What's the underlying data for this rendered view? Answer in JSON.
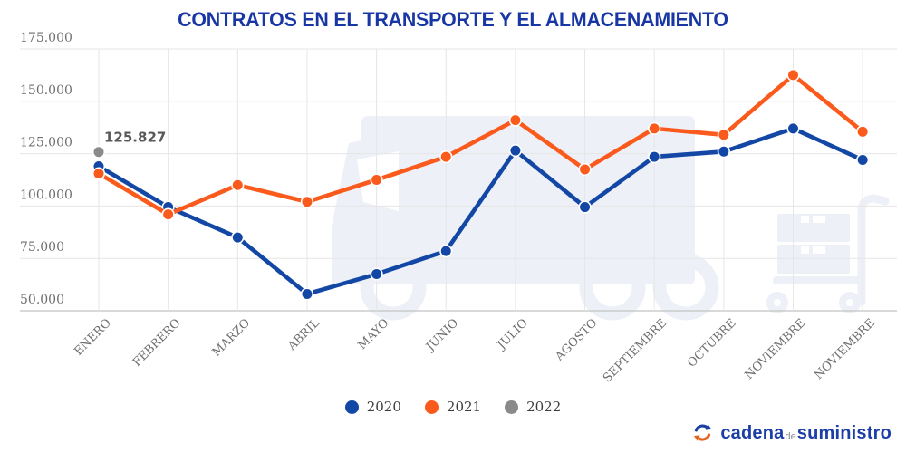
{
  "chart_data": {
    "type": "line",
    "title": "CONTRATOS EN EL TRANSPORTE Y EL ALMACENAMIENTO",
    "categories": [
      "ENERO",
      "FEBRERO",
      "MARZO",
      "ABRIL",
      "MAYO",
      "JUNIO",
      "JULIO",
      "AGOSTO",
      "SEPTIEMBRE",
      "OCTUBRE",
      "NOVIEMBRE",
      "NOVIEMBRE"
    ],
    "y_tick_labels": [
      "175.000",
      "150.000",
      "125.000",
      "100.000",
      "75.000",
      "50.000"
    ],
    "ylim": [
      50000,
      175000
    ],
    "grid": true,
    "legend_position": "bottom",
    "series": [
      {
        "name": "2020",
        "color": "#1247a5",
        "values": [
          119000,
          99500,
          85000,
          58000,
          67500,
          78500,
          126500,
          99500,
          123500,
          126000,
          137000,
          122000
        ]
      },
      {
        "name": "2021",
        "color": "#fb5a1d",
        "values": [
          115500,
          96000,
          110000,
          102000,
          112500,
          123500,
          141000,
          117500,
          137000,
          134000,
          162500,
          135500
        ]
      },
      {
        "name": "2022",
        "color": "#8a8a8a",
        "values": [
          125827,
          null,
          null,
          null,
          null,
          null,
          null,
          null,
          null,
          null,
          null,
          null
        ]
      }
    ],
    "annotation": {
      "text": "125.827",
      "series_index": 2,
      "point_index": 0
    }
  },
  "logo": {
    "word1": "cadena",
    "word2": "de",
    "word3": "suministro"
  },
  "colors": {
    "title": "#1837a5",
    "axis_text": "#6f6f6f",
    "gridline": "#e6e6e6",
    "axis_line": "#c2c2c2",
    "watermark": "#eef0f8",
    "annotation": "#57585a",
    "blue": "#1247a5",
    "orange": "#fb5a1d",
    "gray": "#8a8a8a"
  }
}
